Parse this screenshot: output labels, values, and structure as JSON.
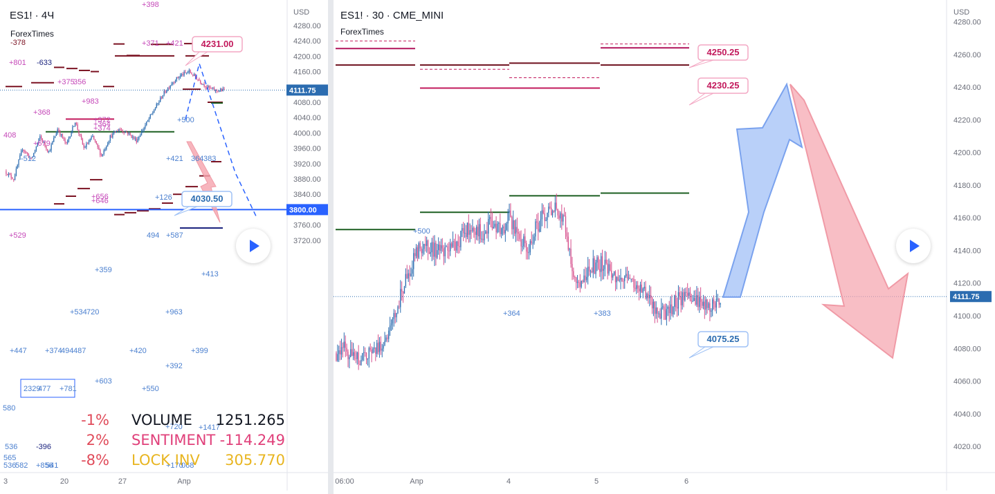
{
  "left_panel": {
    "title": "ES1! · 4Ч",
    "subtitle": "ForexTimes",
    "axis_currency": "USD",
    "y_ticks": [
      "4280.00",
      "4240.00",
      "4200.00",
      "4160.00",
      "4120.00",
      "4080.00",
      "4040.00",
      "4000.00",
      "3960.00",
      "3920.00",
      "3880.00",
      "3840.00",
      "3800.00",
      "3760.00",
      "3720.00"
    ],
    "x_ticks": [
      "3",
      "20",
      "27",
      "Апр"
    ],
    "last_price": "4111.75",
    "line_price": "3800.00",
    "callouts": [
      "4231.00",
      "4030.50"
    ],
    "marker_labels": [
      "+398",
      "-378",
      "+371",
      "+421",
      "+801",
      "-633",
      "+375",
      "356",
      "+983",
      "+368",
      "+372",
      "+364",
      "+374",
      "408",
      "+679",
      "+500",
      "-512",
      "+421",
      "364",
      "383",
      "+656",
      "+646",
      "+126",
      "+529",
      "494",
      "+587",
      "+359",
      "+413",
      "+534",
      "720",
      "+963",
      "+447",
      "+374",
      "494",
      "487",
      "+420",
      "+399",
      "+392",
      "+603",
      "2329",
      "477",
      "+781",
      "+550",
      "580",
      "+720",
      "+1417",
      "536",
      "-396",
      "565",
      "536",
      "582",
      "+856",
      "541",
      "+170",
      "068"
    ],
    "color_up": "#2b6cb0",
    "color_down": "#d64f8c",
    "accent": "#2962ff"
  },
  "stats": [
    {
      "pct": "-1%",
      "label": "VOLUME",
      "value": "1251.265",
      "pct_color": "#e04b5a",
      "label_color": "#131722",
      "value_color": "#131722"
    },
    {
      "pct": "2%",
      "label": "SENTIMENT",
      "value": "-114.249",
      "pct_color": "#e04b5a",
      "label_color": "#e0407a",
      "value_color": "#e0407a"
    },
    {
      "pct": "-8%",
      "label": "LOCK INV",
      "value": "305.770",
      "pct_color": "#e04b5a",
      "label_color": "#e8b520",
      "value_color": "#e8b520"
    }
  ],
  "right_panel": {
    "title": "ES1! · 30 · CME_MINI",
    "subtitle": "ForexTimes",
    "left_y_ticks": [
      "4280.00",
      "4240.00",
      "4200.00",
      "4160.00",
      "4120.00",
      "4080.00",
      "4040.00",
      "4000.00",
      "3960.00",
      "3920.00",
      "3880.00",
      "3840.00",
      "3800.00",
      "3760.00",
      "3720.00"
    ],
    "axis_currency": "USD",
    "y_ticks": [
      "4280.00",
      "4260.00",
      "4240.00",
      "4220.00",
      "4200.00",
      "4180.00",
      "4160.00",
      "4140.00",
      "4120.00",
      "4100.00",
      "4080.00",
      "4060.00",
      "4040.00",
      "4020.00"
    ],
    "x_ticks": [
      "06:00",
      "Апр",
      "4",
      "5",
      "6"
    ],
    "last_price": "4111.75",
    "callouts": [
      "4250.25",
      "4230.25",
      "4075.25"
    ],
    "marker_labels": [
      "+500",
      "+364",
      "+383"
    ],
    "color_up": "#2b6cb0",
    "color_down": "#d64f8c",
    "arrow_up_color": "#8ab0f5",
    "arrow_down_color": "#f5a3ad"
  },
  "chart_data": [
    {
      "type": "candlestick",
      "title": "ES1! · 4Ч",
      "ylabel": "USD",
      "ylim": [
        3700,
        4290
      ],
      "x_categories": [
        "3",
        "20",
        "27",
        "Апр"
      ],
      "close_path": [
        3900,
        3880,
        3960,
        3930,
        3990,
        3950,
        4010,
        3970,
        4030,
        3960,
        3990,
        3940,
        3990,
        4010,
        4000,
        3980,
        4020,
        4060,
        4100,
        4130,
        4150,
        4160,
        4140,
        4120,
        4110,
        4111.75
      ],
      "levels": [
        {
          "price": 4231.0,
          "label": "4231.00"
        },
        {
          "price": 4030.5,
          "label": "4030.50"
        },
        {
          "price": 3800.0,
          "label": "3800.00"
        }
      ]
    },
    {
      "type": "candlestick",
      "title": "ES1! · 30 · CME_MINI",
      "ylabel": "USD",
      "ylim": [
        4010,
        4285
      ],
      "x_categories": [
        "06:00",
        "Апр",
        "4",
        "5",
        "6"
      ],
      "close_path": [
        4077,
        4080,
        4074,
        4073,
        4078,
        4082,
        4090,
        4110,
        4125,
        4140,
        4144,
        4140,
        4138,
        4142,
        4150,
        4155,
        4150,
        4158,
        4152,
        4160,
        4150,
        4140,
        4155,
        4163,
        4168,
        4158,
        4125,
        4120,
        4130,
        4132,
        4126,
        4120,
        4125,
        4118,
        4112,
        4105,
        4100,
        4108,
        4112,
        4110,
        4108,
        4106,
        4111.75
      ],
      "levels": [
        {
          "price": 4250.25,
          "label": "4250.25"
        },
        {
          "price": 4230.25,
          "label": "4230.25"
        },
        {
          "price": 4075.25,
          "label": "4075.25"
        }
      ]
    }
  ]
}
